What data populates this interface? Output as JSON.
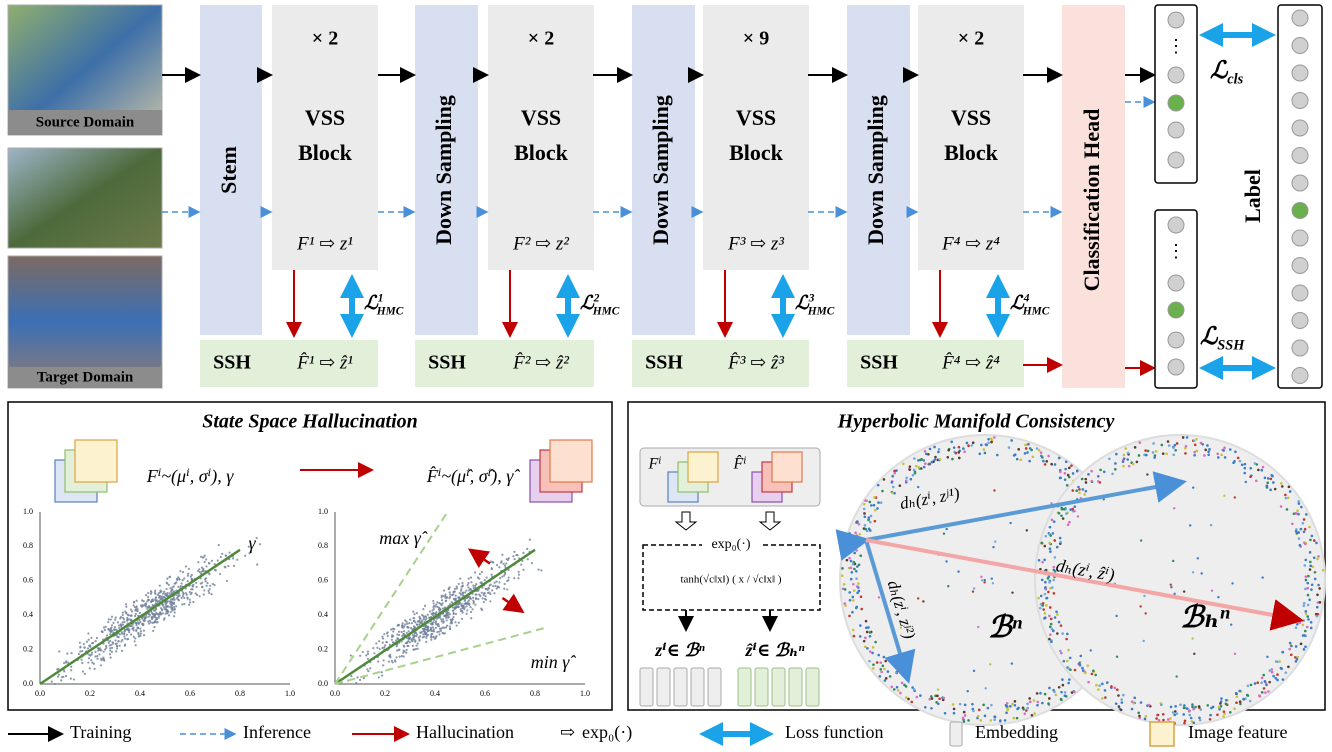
{
  "inputs": {
    "source": "Source Domain",
    "target": "Target Domain"
  },
  "stem": "Stem",
  "stages": [
    {
      "repeat": "× 2",
      "block": [
        "VSS",
        "Block"
      ],
      "feature": "F¹ ⇨ z¹",
      "ssh": "SSH",
      "ssh_feature": "F̂¹ ⇨ ẑ¹",
      "loss": {
        "symbol": "ℒ",
        "sup": "1",
        "sub": "HMC"
      }
    },
    {
      "repeat": "× 2",
      "block": [
        "VSS",
        "Block"
      ],
      "feature": "F² ⇨ z²",
      "ssh": "SSH",
      "ssh_feature": "F̂² ⇨ ẑ²",
      "loss": {
        "symbol": "ℒ",
        "sup": "2",
        "sub": "HMC"
      }
    },
    {
      "repeat": "× 9",
      "block": [
        "VSS",
        "Block"
      ],
      "feature": "F³ ⇨ z³",
      "ssh": "SSH",
      "ssh_feature": "F̂³ ⇨ ẑ³",
      "loss": {
        "symbol": "ℒ",
        "sup": "3",
        "sub": "HMC"
      }
    },
    {
      "repeat": "× 2",
      "block": [
        "VSS",
        "Block"
      ],
      "feature": "F⁴ ⇨ z⁴",
      "ssh": "SSH",
      "ssh_feature": "F̂⁴ ⇨ ẑ⁴",
      "loss": {
        "symbol": "ℒ",
        "sup": "4",
        "sub": "HMC"
      }
    }
  ],
  "downsampling": [
    "Down Sampling",
    "Down Sampling",
    "Down Sampling"
  ],
  "head": "Classification Head",
  "label": "Label",
  "output_ellipsis": [
    "⋮",
    "⋮"
  ],
  "loss_cls": {
    "symbol": "ℒ",
    "sub": "cls"
  },
  "loss_ssh": {
    "symbol": "ℒ",
    "sub": "SSH"
  },
  "ssh_panel": {
    "title": "State Space Hallucination",
    "source_formula": "Fⁱ~(μⁱ, σⁱ), γ",
    "target_formula": "F̂ⁱ~(μ̂ⁱ, σ̂ⁱ), γ̂",
    "gamma": "γ",
    "max": "max γ̂",
    "min": "min γ̂",
    "ticks": [
      "0.0",
      "0.2",
      "0.4",
      "0.6",
      "0.8",
      "1.0"
    ]
  },
  "hmc_panel": {
    "title": "Hyperbolic Manifold Consistency",
    "feature": "Fⁱ",
    "feature_hat": "F̂ⁱ",
    "exp": "exp₀(·)",
    "tanh": "tanh(√c‖x‖) ( x / √c‖x‖ )",
    "z": "zⁱ∈ ℬⁿ",
    "z_hat": "ẑⁱ∈ ℬₕⁿ",
    "d1": "dₕ(zⁱ, zʲ¹)",
    "d2": "dₕ(zⁱ, zʲ²)",
    "d3": "dₕ(zⁱ, ẑⁱ)",
    "ball": "ℬⁿ",
    "ball_h": "ℬₕⁿ"
  },
  "legend": {
    "training": "Training",
    "inference": "Inference",
    "hallucination": "Hallucination",
    "exp_symbol": "⇨",
    "exp": "exp₀(·)",
    "loss": "Loss function",
    "embedding": "Embedding",
    "image": "Image feature"
  }
}
